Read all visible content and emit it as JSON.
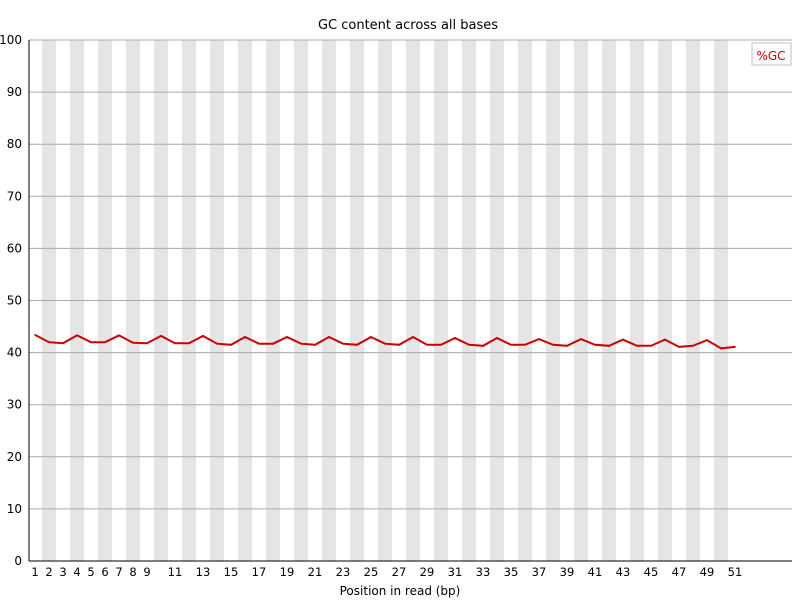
{
  "chart_data": {
    "type": "line",
    "title": "GC content across all bases",
    "xlabel": "Position in read (bp)",
    "ylabel": "",
    "ylim": [
      0,
      100
    ],
    "yticks": [
      0,
      10,
      20,
      30,
      40,
      50,
      60,
      70,
      80,
      90,
      100
    ],
    "grid": true,
    "legend_position": "top-right",
    "x": [
      1,
      2,
      3,
      4,
      5,
      6,
      7,
      8,
      9,
      10,
      11,
      12,
      13,
      14,
      15,
      16,
      17,
      18,
      19,
      20,
      21,
      22,
      23,
      24,
      25,
      26,
      27,
      28,
      29,
      30,
      31,
      32,
      33,
      34,
      35,
      36,
      37,
      38,
      39,
      40,
      41,
      42,
      43,
      44,
      45,
      46,
      47,
      48,
      49,
      50,
      51
    ],
    "x_tick_labels": [
      "1",
      "2",
      "3",
      "4",
      "5",
      "6",
      "7",
      "8",
      "9",
      "",
      "11",
      "",
      "13",
      "",
      "15",
      "",
      "17",
      "",
      "19",
      "",
      "21",
      "",
      "23",
      "",
      "25",
      "",
      "27",
      "",
      "29",
      "",
      "31",
      "",
      "33",
      "",
      "35",
      "",
      "37",
      "",
      "39",
      "",
      "41",
      "",
      "43",
      "",
      "45",
      "",
      "47",
      "",
      "49",
      "",
      "51"
    ],
    "series": [
      {
        "name": "%GC",
        "color": "#cc0000",
        "values": [
          43.4,
          42.0,
          41.8,
          43.3,
          42.0,
          42.0,
          43.3,
          41.9,
          41.8,
          43.2,
          41.8,
          41.8,
          43.2,
          41.7,
          41.5,
          43.0,
          41.7,
          41.7,
          43.0,
          41.7,
          41.5,
          43.0,
          41.7,
          41.5,
          43.0,
          41.7,
          41.5,
          43.0,
          41.5,
          41.5,
          42.8,
          41.5,
          41.3,
          42.8,
          41.5,
          41.5,
          42.6,
          41.5,
          41.3,
          42.6,
          41.5,
          41.3,
          42.5,
          41.3,
          41.3,
          42.5,
          41.1,
          41.3,
          42.4,
          40.8,
          41.1
        ]
      }
    ]
  },
  "colors": {
    "stripe": "#e5e5e5",
    "gridline": "#aaaaaa",
    "axis": "#000000",
    "line": "#cc0000",
    "legend_border": "#c0c0c0"
  }
}
